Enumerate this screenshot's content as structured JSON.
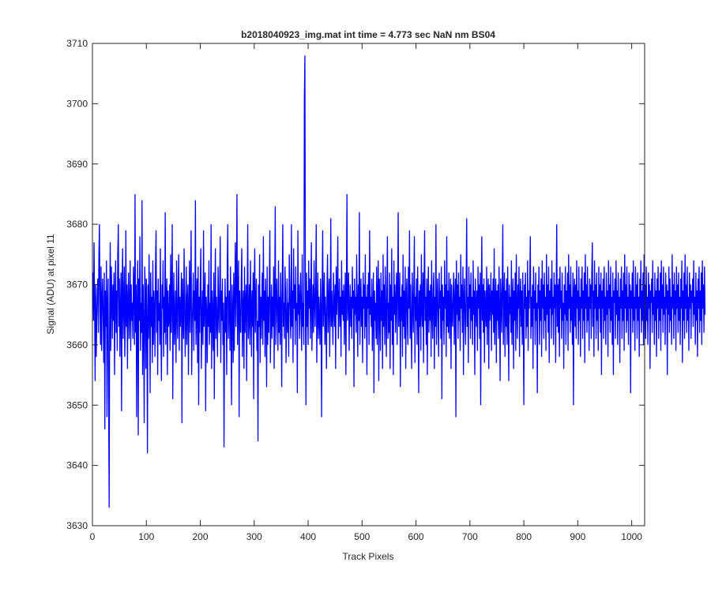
{
  "chart_data": {
    "type": "line",
    "title": "b2018040923_img.mat int time = 4.773 sec  NaN nm BS04",
    "xlabel": "Track Pixels",
    "ylabel": "Signal (ADU) at pixel 11",
    "xlim": [
      0,
      1024
    ],
    "ylim": [
      3630,
      3710
    ],
    "xticks": [
      0,
      100,
      200,
      300,
      400,
      500,
      600,
      700,
      800,
      900,
      1000
    ],
    "yticks": [
      3630,
      3640,
      3650,
      3660,
      3670,
      3680,
      3690,
      3700,
      3710
    ],
    "xtick_labels": [
      "0",
      "100",
      "200",
      "300",
      "400",
      "500",
      "600",
      "700",
      "800",
      "900",
      "1000"
    ],
    "ytick_labels": [
      "3630",
      "3640",
      "3650",
      "3660",
      "3670",
      "3680",
      "3690",
      "3700",
      "3710"
    ],
    "grid": false,
    "line_color": "#0000ff",
    "series": [
      {
        "x_start": 1,
        "x_step": 1,
        "values": [
          3672,
          3664,
          3677,
          3667,
          3654,
          3670,
          3658,
          3664,
          3669,
          3671,
          3662,
          3675,
          3680,
          3666,
          3660,
          3673,
          3659,
          3668,
          3671,
          3664,
          3657,
          3672,
          3646,
          3669,
          3663,
          3674,
          3648,
          3667,
          3671,
          3652,
          3633,
          3666,
          3677,
          3659,
          3673,
          3668,
          3661,
          3670,
          3664,
          3672,
          3655,
          3668,
          3674,
          3662,
          3669,
          3659,
          3675,
          3680,
          3663,
          3671,
          3658,
          3666,
          3672,
          3649,
          3669,
          3676,
          3661,
          3667,
          3673,
          3658,
          3664,
          3679,
          3663,
          3670,
          3656,
          3668,
          3672,
          3661,
          3666,
          3674,
          3659,
          3670,
          3664,
          3667,
          3661,
          3673,
          3669,
          3660,
          3685,
          3662,
          3670,
          3648,
          3667,
          3674,
          3645,
          3671,
          3664,
          3678,
          3659,
          3667,
          3662,
          3684,
          3655,
          3670,
          3663,
          3647,
          3673,
          3669,
          3656,
          3671,
          3664,
          3642,
          3670,
          3661,
          3675,
          3666,
          3652,
          3672,
          3663,
          3668,
          3657,
          3674,
          3660,
          3669,
          3666,
          3658,
          3673,
          3679,
          3662,
          3669,
          3655,
          3671,
          3664,
          3667,
          3660,
          3676,
          3662,
          3654,
          3670,
          3666,
          3674,
          3658,
          3668,
          3662,
          3682,
          3660,
          3667,
          3671,
          3655,
          3669,
          3663,
          3664,
          3670,
          3659,
          3675,
          3662,
          3668,
          3680,
          3651,
          3666,
          3672,
          3660,
          3664,
          3669,
          3657,
          3674,
          3665,
          3661,
          3669,
          3675,
          3659,
          3668,
          3663,
          3666,
          3672,
          3647,
          3671,
          3665,
          3661,
          3676,
          3668,
          3658,
          3664,
          3673,
          3660,
          3667,
          3670,
          3655,
          3666,
          3674,
          3662,
          3669,
          3679,
          3655,
          3663,
          3667,
          3672,
          3659,
          3669,
          3664,
          3684,
          3660,
          3666,
          3671,
          3657,
          3673,
          3650,
          3668,
          3662,
          3670,
          3676,
          3656,
          3664,
          3669,
          3660,
          3679,
          3663,
          3667,
          3672,
          3649,
          3668,
          3665,
          3657,
          3670,
          3663,
          3674,
          3660,
          3667,
          3662,
          3680,
          3656,
          3669,
          3665,
          3659,
          3672,
          3651,
          3667,
          3676,
          3661,
          3668,
          3664,
          3658,
          3673,
          3666,
          3662,
          3670,
          3678,
          3657,
          3669,
          3664,
          3671,
          3660,
          3667,
          3643,
          3663,
          3671,
          3662,
          3668,
          3655,
          3673,
          3680,
          3661,
          3666,
          3669,
          3659,
          3673,
          3664,
          3650,
          3670,
          3666,
          3657,
          3672,
          3659,
          3668,
          3677,
          3663,
          3670,
          3685,
          3660,
          3667,
          3674,
          3648,
          3669,
          3663,
          3662,
          3671,
          3676,
          3658,
          3666,
          3669,
          3656,
          3673,
          3662,
          3667,
          3670,
          3654,
          3668,
          3680,
          3661,
          3664,
          3670,
          3660,
          3674,
          3666,
          3658,
          3669,
          3663,
          3672,
          3651,
          3670,
          3676,
          3662,
          3667,
          3671,
          3659,
          3664,
          3644,
          3670,
          3663,
          3675,
          3657,
          3668,
          3661,
          3667,
          3672,
          3660,
          3678,
          3664,
          3669,
          3658,
          3671,
          3666,
          3653,
          3673,
          3660,
          3668,
          3662,
          3670,
          3679,
          3657,
          3664,
          3670,
          3661,
          3668,
          3663,
          3673,
          3656,
          3669,
          3683,
          3660,
          3667,
          3671,
          3664,
          3659,
          3674,
          3662,
          3668,
          3660,
          3672,
          3666,
          3653,
          3670,
          3680,
          3663,
          3667,
          3661,
          3673,
          3669,
          3657,
          3664,
          3671,
          3662,
          3667,
          3658,
          3675,
          3670,
          3664,
          3661,
          3680,
          3663,
          3669,
          3657,
          3676,
          3666,
          3670,
          3660,
          3673,
          3664,
          3667,
          3652,
          3679,
          3665,
          3670,
          3661,
          3668,
          3672,
          3664,
          3659,
          3675,
          3663,
          3667,
          3660,
          3701,
          3708,
          3665,
          3650,
          3672,
          3663,
          3669,
          3660,
          3674,
          3666,
          3671,
          3661,
          3668,
          3677,
          3659,
          3665,
          3670,
          3662,
          3674,
          3667,
          3663,
          3670,
          3680,
          3657,
          3665,
          3672,
          3661,
          3668,
          3664,
          3660,
          3671,
          3666,
          3648,
          3669,
          3679,
          3663,
          3667,
          3672,
          3660,
          3668,
          3664,
          3656,
          3670,
          3675,
          3662,
          3667,
          3671,
          3658,
          3666,
          3681,
          3663,
          3669,
          3665,
          3660,
          3672,
          3667,
          3663,
          3670,
          3656,
          3673,
          3665,
          3669,
          3678,
          3661,
          3666,
          3671,
          3663,
          3668,
          3658,
          3674,
          3665,
          3669,
          3664,
          3670,
          3660,
          3667,
          3672,
          3655,
          3669,
          3685,
          3664,
          3667,
          3672,
          3659,
          3666,
          3670,
          3663,
          3668,
          3661,
          3673,
          3666,
          3669,
          3653,
          3671,
          3665,
          3668,
          3662,
          3675,
          3667,
          3658,
          3670,
          3664,
          3682,
          3660,
          3667,
          3671,
          3663,
          3668,
          3657,
          3672,
          3666,
          3670,
          3661,
          3675,
          3663,
          3668,
          3655,
          3670,
          3666,
          3672,
          3660,
          3679,
          3665,
          3668,
          3663,
          3671,
          3659,
          3666,
          3672,
          3652,
          3669,
          3664,
          3667,
          3661,
          3673,
          3660,
          3668,
          3674,
          3654,
          3671,
          3666,
          3659,
          3672,
          3664,
          3669,
          3656,
          3675,
          3663,
          3670,
          3660,
          3673,
          3666,
          3658,
          3669,
          3678,
          3661,
          3667,
          3662,
          3672,
          3656,
          3670,
          3664,
          3676,
          3660,
          3668,
          3655,
          3674,
          3665,
          3670,
          3662,
          3667,
          3672,
          3660,
          3669,
          3682,
          3663,
          3666,
          3672,
          3653,
          3668,
          3664,
          3670,
          3658,
          3675,
          3663,
          3669,
          3661,
          3673,
          3656,
          3668,
          3671,
          3664,
          3660,
          3673,
          3666,
          3679,
          3661,
          3670,
          3663,
          3656,
          3672,
          3667,
          3662,
          3670,
          3678,
          3657,
          3668,
          3664,
          3671,
          3660,
          3673,
          3666,
          3652,
          3669,
          3663,
          3670,
          3659,
          3675,
          3666,
          3663,
          3672,
          3657,
          3670,
          3679,
          3664,
          3668,
          3660,
          3671,
          3655,
          3668,
          3673,
          3662,
          3669,
          3664,
          3670,
          3658,
          3674,
          3666,
          3661,
          3669,
          3672,
          3656,
          3668,
          3663,
          3680,
          3660,
          3667,
          3671,
          3664,
          3658,
          3672,
          3666,
          3669,
          3661,
          3673,
          3651,
          3670,
          3664,
          3668,
          3660,
          3674,
          3666,
          3670,
          3658,
          3678,
          3663,
          3669,
          3662,
          3672,
          3661,
          3667,
          3671,
          3656,
          3670,
          3665,
          3663,
          3669,
          3672,
          3660,
          3667,
          3671,
          3648,
          3674,
          3665,
          3670,
          3661,
          3672,
          3664,
          3668,
          3659,
          3675,
          3666,
          3670,
          3662,
          3673,
          3655,
          3668,
          3671,
          3664,
          3660,
          3670,
          3681,
          3663,
          3668,
          3657,
          3673,
          3666,
          3670,
          3661,
          3672,
          3664,
          3668,
          3660,
          3674,
          3665,
          3669,
          3655,
          3671,
          3667,
          3663,
          3669,
          3659,
          3673,
          3666,
          3670,
          3661,
          3672,
          3650,
          3668,
          3678,
          3664,
          3670,
          3662,
          3671,
          3657,
          3669,
          3666,
          3663,
          3673,
          3660,
          3668,
          3671,
          3656,
          3670,
          3664,
          3667,
          3672,
          3659,
          3669,
          3665,
          3671,
          3662,
          3676,
          3660,
          3667,
          3671,
          3657,
          3669,
          3664,
          3670,
          3661,
          3673,
          3666,
          3654,
          3671,
          3668,
          3662,
          3670,
          3680,
          3660,
          3667,
          3672,
          3658,
          3669,
          3663,
          3671,
          3660,
          3673,
          3666,
          3654,
          3670,
          3665,
          3668,
          3662,
          3674,
          3660,
          3668,
          3671,
          3656,
          3669,
          3664,
          3672,
          3659,
          3675,
          3666,
          3661,
          3670,
          3666,
          3673,
          3658,
          3668,
          3671,
          3663,
          3669,
          3660,
          3672,
          3664,
          3650,
          3670,
          3666,
          3672,
          3661,
          3668,
          3663,
          3674,
          3659,
          3669,
          3666,
          3671,
          3678,
          3661,
          3668,
          3663,
          3670,
          3656,
          3673,
          3666,
          3669,
          3660,
          3672,
          3664,
          3667,
          3652,
          3670,
          3666,
          3673,
          3660,
          3669,
          3664,
          3671,
          3658,
          3674,
          3666,
          3670,
          3661,
          3672,
          3664,
          3668,
          3659,
          3675,
          3665,
          3670,
          3662,
          3673,
          3657,
          3669,
          3666,
          3671,
          3661,
          3674,
          3665,
          3668,
          3660,
          3672,
          3666,
          3670,
          3657,
          3669,
          3680,
          3663,
          3670,
          3662,
          3671,
          3658,
          3673,
          3666,
          3669,
          3661,
          3672,
          3664,
          3667,
          3656,
          3670,
          3665,
          3673,
          3660,
          3669,
          3664,
          3672,
          3659,
          3675,
          3666,
          3670,
          3662,
          3673,
          3664,
          3668,
          3660,
          3672,
          3650,
          3669,
          3671,
          3663,
          3670,
          3661,
          3674,
          3666,
          3669,
          3660,
          3673,
          3664,
          3668,
          3658,
          3671,
          3666,
          3673,
          3661,
          3669,
          3664,
          3672,
          3657,
          3675,
          3666,
          3670,
          3662,
          3673,
          3664,
          3668,
          3659,
          3671,
          3666,
          3670,
          3661,
          3672,
          3677,
          3663,
          3669,
          3658,
          3674,
          3666,
          3670,
          3661,
          3672,
          3664,
          3668,
          3659,
          3673,
          3666,
          3670,
          3662,
          3672,
          3655,
          3669,
          3666,
          3671,
          3661,
          3673,
          3664,
          3668,
          3660,
          3672,
          3665,
          3669,
          3658,
          3674,
          3666,
          3670,
          3662,
          3673,
          3664,
          3668,
          3660,
          3672,
          3655,
          3669,
          3667,
          3671,
          3661,
          3674,
          3665,
          3669,
          3660,
          3672,
          3664,
          3668,
          3657,
          3671,
          3666,
          3673,
          3661,
          3669,
          3664,
          3672,
          3659,
          3675,
          3666,
          3670,
          3662,
          3673,
          3664,
          3668,
          3660,
          3672,
          3666,
          3670,
          3652,
          3669,
          3666,
          3672,
          3662,
          3674,
          3664,
          3668,
          3659,
          3673,
          3666,
          3670,
          3661,
          3672,
          3664,
          3668,
          3658,
          3671,
          3666,
          3674,
          3662,
          3669,
          3664,
          3672,
          3660,
          3675,
          3666,
          3670,
          3661,
          3673,
          3664,
          3668,
          3660,
          3672,
          3666,
          3670,
          3656,
          3669,
          3667,
          3671,
          3662,
          3674,
          3665,
          3668,
          3660,
          3672,
          3664,
          3669,
          3658,
          3671,
          3666,
          3673,
          3661,
          3669,
          3664,
          3672,
          3659,
          3674,
          3666,
          3670,
          3662,
          3673,
          3665,
          3668,
          3660,
          3672,
          3666,
          3670,
          3655,
          3669,
          3665,
          3673,
          3662,
          3671,
          3664,
          3668,
          3660,
          3675,
          3666,
          3670,
          3661,
          3672,
          3665,
          3669,
          3659,
          3673,
          3666,
          3670,
          3662,
          3672,
          3664,
          3668,
          3660,
          3671,
          3666,
          3674,
          3657,
          3669,
          3664,
          3672,
          3661,
          3675,
          3666,
          3670,
          3662,
          3673,
          3664,
          3668,
          3659,
          3672,
          3666,
          3670,
          3661,
          3669,
          3667,
          3671,
          3663,
          3674,
          3665,
          3668,
          3660,
          3672,
          3664,
          3669,
          3658,
          3671,
          3666,
          3673,
          3662,
          3669,
          3664,
          3672,
          3660,
          3674,
          3666,
          3670,
          3662,
          3673,
          3665
        ]
      }
    ]
  }
}
